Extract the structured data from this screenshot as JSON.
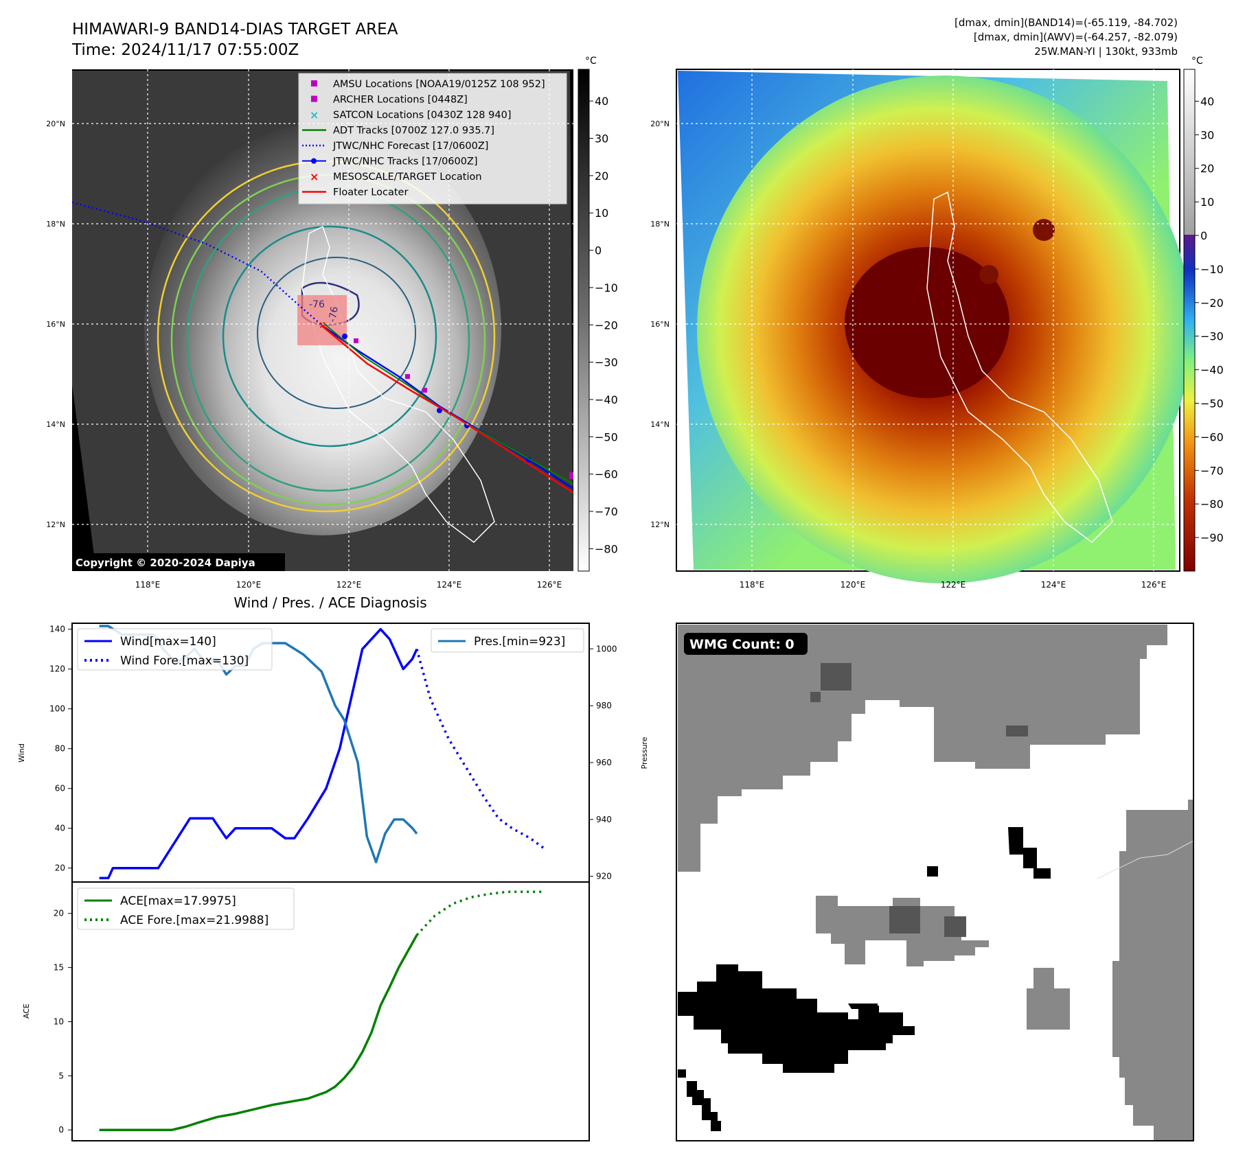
{
  "header": {
    "title_line1": "HIMAWARI-9 BAND14-DIAS TARGET AREA",
    "title_line2": "Time: 2024/11/17 07:55:00Z",
    "stat_line1": "[dmax, dmin](BAND14)=(-65.119, -84.702)",
    "stat_line2": "[dmax, dmin](AWV)=(-64.257, -82.079)",
    "stat_line3": "25W.MAN-YI | 130kt, 933mb"
  },
  "maps": {
    "lat_labels": [
      "20°N",
      "18°N",
      "16°N",
      "14°N",
      "12°N"
    ],
    "lon_labels": [
      "118°E",
      "120°E",
      "122°E",
      "124°E",
      "126°E"
    ],
    "copyright": "Copyright © 2020-2024 Dapiya",
    "contour_labels": [
      "-76",
      "-76"
    ],
    "legend": [
      {
        "label": "AMSU Locations [NOAA19/0125Z 108 952]",
        "color": "#c000c0",
        "marker": "square"
      },
      {
        "label": "ARCHER Locations [0448Z]",
        "color": "#c000c0",
        "marker": "square"
      },
      {
        "label": "SATCON Locations [0430Z 128 940]",
        "color": "#20c0c0",
        "marker": "x"
      },
      {
        "label": "ADT Tracks [0700Z 127.0 935.7]",
        "color": "#008000",
        "marker": "line"
      },
      {
        "label": "JTWC/NHC Forecast [17/0600Z]",
        "color": "#0000ff",
        "marker": "dotted"
      },
      {
        "label": "JTWC/NHC Tracks [17/0600Z]",
        "color": "#0000ff",
        "marker": "line-dot"
      },
      {
        "label": "MESOSCALE/TARGET Location",
        "color": "#ff0000",
        "marker": "x"
      },
      {
        "label": "Floater Locater",
        "color": "#ff0000",
        "marker": "line"
      }
    ]
  },
  "colorbars": {
    "unit": "°C",
    "gray_ticks": [
      "40",
      "30",
      "20",
      "10",
      "0",
      "−10",
      "−20",
      "−30",
      "−40",
      "−50",
      "−60",
      "−70",
      "−80"
    ],
    "color_ticks": [
      "40",
      "30",
      "20",
      "10",
      "0",
      "−10",
      "−20",
      "−30",
      "−40",
      "−50",
      "−60",
      "−70",
      "−80",
      "−90"
    ]
  },
  "wmg": {
    "label": "WMG Count: 0"
  },
  "chart_data": [
    {
      "type": "line",
      "title": "Wind / Pres. / ACE Diagnosis",
      "ylabel": "Wind",
      "ylabel_right": "Pressure",
      "ylim": [
        13,
        143
      ],
      "ylim_right": [
        918,
        1009
      ],
      "yticks": [
        "20",
        "40",
        "60",
        "80",
        "100",
        "120",
        "140"
      ],
      "yticks_right": [
        "920",
        "940",
        "960",
        "980",
        "1000"
      ],
      "series": [
        {
          "name": "Wind[max=140]",
          "color": "#0000ff",
          "style": "solid",
          "axis": "left",
          "x": [
            0,
            0.1,
            0.15,
            0.3,
            0.5,
            0.65,
            1.0,
            1.25,
            1.4,
            1.5,
            1.65,
            1.9,
            2.05,
            2.15,
            2.3,
            2.5,
            2.65,
            2.75,
            2.9,
            3.0,
            3.1,
            3.2,
            3.35,
            3.45,
            3.5
          ],
          "values": [
            15,
            15,
            20,
            20,
            20,
            20,
            45,
            45,
            35,
            40,
            40,
            40,
            35,
            35,
            45,
            60,
            80,
            100,
            130,
            135,
            140,
            135,
            120,
            125,
            130
          ]
        },
        {
          "name": "Wind Fore.[max=130]",
          "color": "#0000ff",
          "style": "dotted",
          "axis": "left",
          "x": [
            3.5,
            3.65,
            3.85,
            4.05,
            4.25,
            4.4,
            4.55,
            4.75,
            4.9
          ],
          "values": [
            130,
            105,
            85,
            70,
            55,
            45,
            40,
            35,
            30
          ]
        },
        {
          "name": "Pres.[min=923]",
          "color": "#1f77b4",
          "style": "solid",
          "axis": "right",
          "x": [
            0,
            0.1,
            0.25,
            0.45,
            0.6,
            0.7,
            0.85,
            0.95,
            1.05,
            1.15,
            1.3,
            1.4,
            1.5,
            1.6,
            1.7,
            1.8,
            1.95,
            2.05,
            2.15,
            2.25,
            2.35,
            2.45,
            2.6,
            2.7,
            2.85,
            2.95,
            3.05,
            3.15,
            3.25,
            3.35,
            3.45,
            3.5
          ],
          "values": [
            1008,
            1008,
            1005,
            1005,
            1005,
            1000,
            995,
            997,
            1000,
            996,
            996,
            991,
            994,
            994,
            1000,
            1002,
            1002,
            1002,
            1000,
            998,
            995,
            992,
            980,
            975,
            960,
            934,
            925,
            935,
            940,
            940,
            937,
            935
          ]
        }
      ]
    },
    {
      "type": "line",
      "ylabel": "ACE",
      "ylim": [
        -1,
        22.9
      ],
      "yticks": [
        "0",
        "5",
        "10",
        "15",
        "20"
      ],
      "series": [
        {
          "name": "ACE[max=17.9975]",
          "color": "#008000",
          "style": "solid",
          "x": [
            0,
            0.3,
            0.6,
            0.8,
            0.95,
            1.1,
            1.3,
            1.5,
            1.7,
            1.9,
            2.1,
            2.3,
            2.5,
            2.6,
            2.7,
            2.8,
            2.9,
            3.0,
            3.1,
            3.2,
            3.3,
            3.5
          ],
          "values": [
            0,
            0,
            0,
            0,
            0.3,
            0.7,
            1.2,
            1.5,
            1.9,
            2.3,
            2.6,
            2.9,
            3.5,
            4.0,
            4.8,
            5.8,
            7.2,
            9.0,
            11.5,
            13.2,
            15.0,
            18.0
          ]
        },
        {
          "name": "ACE Fore.[max=21.9988]",
          "color": "#008000",
          "style": "dotted",
          "x": [
            3.5,
            3.7,
            3.9,
            4.1,
            4.3,
            4.5,
            4.7,
            4.9
          ],
          "values": [
            18.0,
            19.8,
            20.9,
            21.5,
            21.8,
            22.0,
            22.0,
            22.0
          ]
        }
      ]
    }
  ]
}
